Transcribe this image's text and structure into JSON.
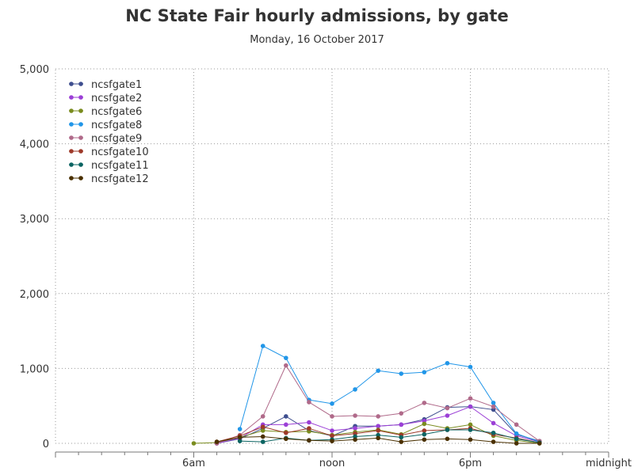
{
  "chart_data": {
    "type": "line",
    "title": "NC State Fair hourly admissions, by gate",
    "subtitle": "Monday, 16 October 2017",
    "xlabel": "",
    "ylabel": "",
    "x_hours": [
      6,
      7,
      8,
      9,
      10,
      11,
      12,
      13,
      14,
      15,
      16,
      17,
      18,
      19,
      20,
      21,
      22
    ],
    "xlim_hours": [
      0,
      24
    ],
    "x_ticks": [
      {
        "hour": 6,
        "label": "6am"
      },
      {
        "hour": 12,
        "label": "noon"
      },
      {
        "hour": 18,
        "label": "6pm"
      },
      {
        "hour": 24,
        "label": "midnight"
      }
    ],
    "ylim": [
      0,
      5000
    ],
    "y_ticks": [
      {
        "value": 0,
        "label": "0"
      },
      {
        "value": 1000,
        "label": "1,000"
      },
      {
        "value": 2000,
        "label": "2,000"
      },
      {
        "value": 3000,
        "label": "3,000"
      },
      {
        "value": 4000,
        "label": "4,000"
      },
      {
        "value": 5000,
        "label": "5,000"
      }
    ],
    "grid": true,
    "legend_position": "top-left",
    "series": [
      {
        "name": "ncsfgate1",
        "color": "#3f4f8f",
        "values": [
          null,
          0,
          60,
          200,
          360,
          170,
          100,
          230,
          230,
          250,
          320,
          480,
          490,
          450,
          120,
          30,
          null
        ]
      },
      {
        "name": "ncsfgate2",
        "color": "#9b3fd6",
        "values": [
          null,
          0,
          70,
          250,
          250,
          280,
          170,
          200,
          230,
          250,
          300,
          370,
          490,
          270,
          100,
          20,
          null
        ]
      },
      {
        "name": "ncsfgate6",
        "color": "#7a8c1e",
        "values": [
          0,
          10,
          80,
          170,
          150,
          160,
          110,
          150,
          180,
          120,
          260,
          200,
          250,
          100,
          40,
          0,
          null
        ]
      },
      {
        "name": "ncsfgate8",
        "color": "#2196e8",
        "values": [
          null,
          null,
          190,
          1300,
          1140,
          580,
          530,
          720,
          970,
          930,
          950,
          1070,
          1020,
          540,
          130,
          20,
          null
        ]
      },
      {
        "name": "ncsfgate9",
        "color": "#b06a8a",
        "values": [
          null,
          0,
          110,
          360,
          1040,
          550,
          360,
          370,
          360,
          400,
          540,
          470,
          600,
          490,
          250,
          30,
          null
        ]
      },
      {
        "name": "ncsfgate10",
        "color": "#9e3a2a",
        "values": [
          null,
          20,
          100,
          220,
          140,
          200,
          100,
          130,
          170,
          110,
          170,
          180,
          200,
          120,
          70,
          10,
          null
        ]
      },
      {
        "name": "ncsfgate11",
        "color": "#0b6462",
        "values": [
          null,
          null,
          30,
          20,
          70,
          40,
          50,
          90,
          110,
          80,
          120,
          180,
          180,
          140,
          60,
          10,
          null
        ]
      },
      {
        "name": "ncsfgate12",
        "color": "#4a3000",
        "values": [
          null,
          20,
          80,
          90,
          60,
          40,
          30,
          50,
          70,
          20,
          50,
          60,
          50,
          20,
          0,
          0,
          null
        ]
      }
    ]
  }
}
